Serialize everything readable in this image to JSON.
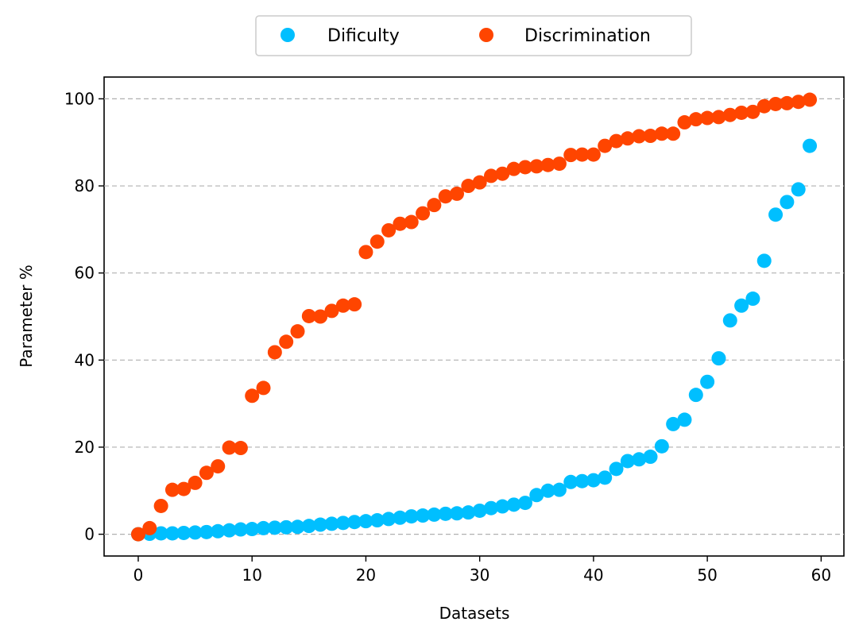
{
  "chart_data": {
    "type": "scatter",
    "title": "",
    "xlabel": "Datasets",
    "ylabel": "Parameter %",
    "xlim": [
      -3,
      62
    ],
    "ylim": [
      -5,
      105
    ],
    "xticks": [
      0,
      10,
      20,
      30,
      40,
      50,
      60
    ],
    "yticks": [
      0,
      20,
      40,
      60,
      80,
      100
    ],
    "grid": "y-dashed",
    "legend_position": "top-center-outside",
    "x": [
      0,
      1,
      2,
      3,
      4,
      5,
      6,
      7,
      8,
      9,
      10,
      11,
      12,
      13,
      14,
      15,
      16,
      17,
      18,
      19,
      20,
      21,
      22,
      23,
      24,
      25,
      26,
      27,
      28,
      29,
      30,
      31,
      32,
      33,
      34,
      35,
      36,
      37,
      38,
      39,
      40,
      41,
      42,
      43,
      44,
      45,
      46,
      47,
      48,
      49,
      50,
      51,
      52,
      53,
      54,
      55,
      56,
      57,
      58,
      59
    ],
    "series": [
      {
        "name": "Dificulty",
        "color": "#00bfff",
        "values": [
          0.0,
          0.1,
          0.2,
          0.2,
          0.3,
          0.4,
          0.5,
          0.7,
          0.9,
          1.1,
          1.2,
          1.4,
          1.5,
          1.6,
          1.7,
          1.9,
          2.2,
          2.4,
          2.6,
          2.8,
          3.0,
          3.2,
          3.5,
          3.8,
          4.1,
          4.3,
          4.5,
          4.7,
          4.8,
          5.0,
          5.4,
          6.0,
          6.4,
          6.8,
          7.2,
          9.0,
          10.0,
          10.2,
          12.0,
          12.2,
          12.4,
          13.0,
          15.0,
          16.8,
          17.2,
          17.8,
          20.2,
          25.3,
          26.3,
          32.0,
          35.0,
          40.4,
          49.1,
          52.5,
          54.1,
          62.8,
          73.4,
          76.3,
          79.2,
          89.2
        ]
      },
      {
        "name": "Discrimination",
        "color": "#ff4500",
        "values": [
          0.0,
          1.4,
          6.5,
          10.2,
          10.4,
          11.8,
          14.1,
          15.6,
          19.9,
          19.8,
          31.8,
          33.6,
          41.8,
          44.2,
          46.6,
          50.1,
          50.0,
          51.3,
          52.5,
          52.8,
          64.8,
          67.2,
          69.8,
          71.3,
          71.7,
          73.7,
          75.6,
          77.6,
          78.2,
          80.0,
          80.8,
          82.3,
          82.8,
          83.9,
          84.3,
          84.5,
          84.8,
          85.1,
          87.1,
          87.2,
          87.2,
          89.2,
          90.3,
          90.9,
          91.4,
          91.5,
          92.0,
          92.0,
          94.6,
          95.3,
          95.6,
          95.8,
          96.3,
          96.8,
          97.0,
          98.3,
          98.8,
          99.0,
          99.3,
          99.8
        ]
      }
    ]
  }
}
